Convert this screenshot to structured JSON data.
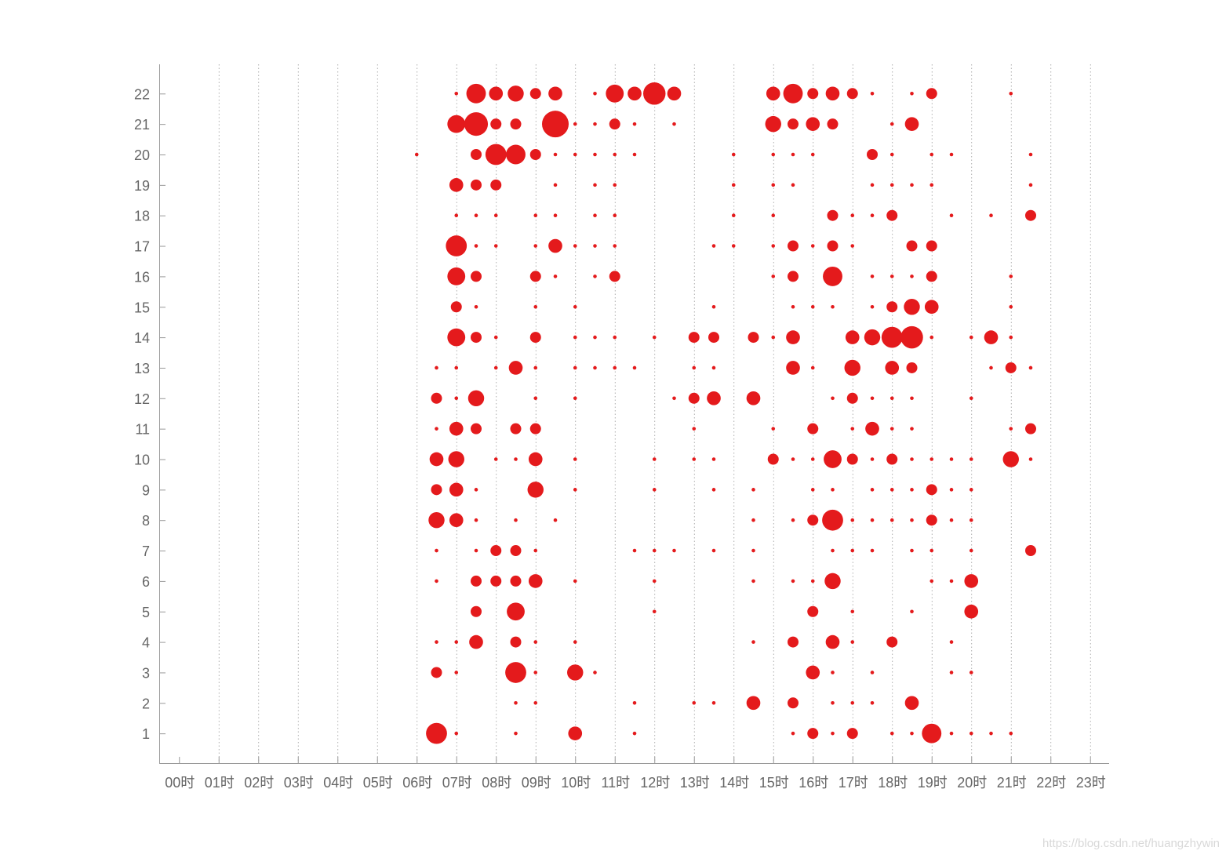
{
  "chart_data": {
    "type": "scatter",
    "title": "",
    "xlabel": "",
    "ylabel": "",
    "x_tick_labels": [
      "00时",
      "01时",
      "02时",
      "03时",
      "04时",
      "05时",
      "06时",
      "07时",
      "08时",
      "09时",
      "10时",
      "11时",
      "12时",
      "13时",
      "14时",
      "15时",
      "16时",
      "17时",
      "18时",
      "19时",
      "20时",
      "21时",
      "22时",
      "23时"
    ],
    "y_ticks": [
      1,
      2,
      3,
      4,
      5,
      6,
      7,
      8,
      9,
      10,
      11,
      12,
      13,
      14,
      15,
      16,
      17,
      18,
      19,
      20,
      21,
      22
    ],
    "xlim": [
      -0.5,
      23.5
    ],
    "ylim": [
      0,
      22.8
    ],
    "grid": "vertical dotted",
    "marker_color": "#e41a1c",
    "size_note": "bubble size is relative count (1 = smallest visible dot)",
    "points": [
      [
        7,
        22,
        1
      ],
      [
        7.5,
        22,
        6
      ],
      [
        8,
        22,
        3
      ],
      [
        8.5,
        22,
        4
      ],
      [
        9,
        22,
        2
      ],
      [
        9.5,
        22,
        3
      ],
      [
        10.5,
        22,
        1
      ],
      [
        11,
        22,
        5
      ],
      [
        11.5,
        22,
        3
      ],
      [
        12,
        22,
        8
      ],
      [
        12.5,
        22,
        3
      ],
      [
        15,
        22,
        3
      ],
      [
        15.5,
        22,
        6
      ],
      [
        16,
        22,
        2
      ],
      [
        16.5,
        22,
        3
      ],
      [
        17,
        22,
        2
      ],
      [
        17.5,
        22,
        1
      ],
      [
        18.5,
        22,
        1
      ],
      [
        19,
        22,
        2
      ],
      [
        21,
        22,
        1
      ],
      [
        7,
        21,
        5
      ],
      [
        7.5,
        21,
        9
      ],
      [
        8,
        21,
        2
      ],
      [
        8.5,
        21,
        2
      ],
      [
        9.5,
        21,
        12
      ],
      [
        10,
        21,
        1
      ],
      [
        10.5,
        21,
        1
      ],
      [
        11,
        21,
        2
      ],
      [
        11.5,
        21,
        1
      ],
      [
        12.5,
        21,
        1
      ],
      [
        15,
        21,
        4
      ],
      [
        15.5,
        21,
        2
      ],
      [
        16,
        21,
        3
      ],
      [
        16.5,
        21,
        2
      ],
      [
        18,
        21,
        1
      ],
      [
        18.5,
        21,
        3
      ],
      [
        6,
        20,
        1
      ],
      [
        7.5,
        20,
        2
      ],
      [
        8,
        20,
        7
      ],
      [
        8.5,
        20,
        6
      ],
      [
        9,
        20,
        2
      ],
      [
        9.5,
        20,
        1
      ],
      [
        10,
        20,
        1
      ],
      [
        10.5,
        20,
        1
      ],
      [
        11,
        20,
        1
      ],
      [
        11.5,
        20,
        1
      ],
      [
        14,
        20,
        1
      ],
      [
        15,
        20,
        1
      ],
      [
        15.5,
        20,
        1
      ],
      [
        16,
        20,
        1
      ],
      [
        17.5,
        20,
        2
      ],
      [
        18,
        20,
        1
      ],
      [
        19,
        20,
        1
      ],
      [
        19.5,
        20,
        1
      ],
      [
        21.5,
        20,
        1
      ],
      [
        7,
        19,
        3
      ],
      [
        7.5,
        19,
        2
      ],
      [
        8,
        19,
        2
      ],
      [
        9.5,
        19,
        1
      ],
      [
        10.5,
        19,
        1
      ],
      [
        11,
        19,
        1
      ],
      [
        14,
        19,
        1
      ],
      [
        15,
        19,
        1
      ],
      [
        15.5,
        19,
        1
      ],
      [
        17.5,
        19,
        1
      ],
      [
        18,
        19,
        1
      ],
      [
        18.5,
        19,
        1
      ],
      [
        19,
        19,
        1
      ],
      [
        21.5,
        19,
        1
      ],
      [
        7,
        18,
        1
      ],
      [
        7.5,
        18,
        1
      ],
      [
        8,
        18,
        1
      ],
      [
        9,
        18,
        1
      ],
      [
        9.5,
        18,
        1
      ],
      [
        10.5,
        18,
        1
      ],
      [
        11,
        18,
        1
      ],
      [
        14,
        18,
        1
      ],
      [
        15,
        18,
        1
      ],
      [
        16.5,
        18,
        2
      ],
      [
        17,
        18,
        1
      ],
      [
        17.5,
        18,
        1
      ],
      [
        18,
        18,
        2
      ],
      [
        19.5,
        18,
        1
      ],
      [
        20.5,
        18,
        1
      ],
      [
        21.5,
        18,
        2
      ],
      [
        7,
        17,
        7
      ],
      [
        7.5,
        17,
        1
      ],
      [
        8,
        17,
        1
      ],
      [
        9,
        17,
        1
      ],
      [
        9.5,
        17,
        3
      ],
      [
        10,
        17,
        1
      ],
      [
        10.5,
        17,
        1
      ],
      [
        11,
        17,
        1
      ],
      [
        13.5,
        17,
        1
      ],
      [
        14,
        17,
        1
      ],
      [
        15,
        17,
        1
      ],
      [
        15.5,
        17,
        2
      ],
      [
        16,
        17,
        1
      ],
      [
        16.5,
        17,
        2
      ],
      [
        17,
        17,
        1
      ],
      [
        18.5,
        17,
        2
      ],
      [
        19,
        17,
        2
      ],
      [
        7,
        16,
        5
      ],
      [
        7.5,
        16,
        2
      ],
      [
        9,
        16,
        2
      ],
      [
        9.5,
        16,
        1
      ],
      [
        10.5,
        16,
        1
      ],
      [
        11,
        16,
        2
      ],
      [
        15,
        16,
        1
      ],
      [
        15.5,
        16,
        2
      ],
      [
        16.5,
        16,
        6
      ],
      [
        17.5,
        16,
        1
      ],
      [
        18,
        16,
        1
      ],
      [
        18.5,
        16,
        1
      ],
      [
        19,
        16,
        2
      ],
      [
        21,
        16,
        1
      ],
      [
        7,
        15,
        2
      ],
      [
        7.5,
        15,
        1
      ],
      [
        9,
        15,
        1
      ],
      [
        10,
        15,
        1
      ],
      [
        13.5,
        15,
        1
      ],
      [
        15.5,
        15,
        1
      ],
      [
        16,
        15,
        1
      ],
      [
        16.5,
        15,
        1
      ],
      [
        17.5,
        15,
        1
      ],
      [
        18,
        15,
        2
      ],
      [
        18.5,
        15,
        4
      ],
      [
        19,
        15,
        3
      ],
      [
        21,
        15,
        1
      ],
      [
        7,
        14,
        5
      ],
      [
        7.5,
        14,
        2
      ],
      [
        8,
        14,
        1
      ],
      [
        9,
        14,
        2
      ],
      [
        10,
        14,
        1
      ],
      [
        10.5,
        14,
        1
      ],
      [
        11,
        14,
        1
      ],
      [
        12,
        14,
        1
      ],
      [
        13,
        14,
        2
      ],
      [
        13.5,
        14,
        2
      ],
      [
        14.5,
        14,
        2
      ],
      [
        15,
        14,
        1
      ],
      [
        15.5,
        14,
        3
      ],
      [
        17,
        14,
        3
      ],
      [
        17.5,
        14,
        4
      ],
      [
        18,
        14,
        7
      ],
      [
        18.5,
        14,
        8
      ],
      [
        19,
        14,
        1
      ],
      [
        20,
        14,
        1
      ],
      [
        20.5,
        14,
        3
      ],
      [
        21,
        14,
        1
      ],
      [
        6.5,
        13,
        1
      ],
      [
        7,
        13,
        1
      ],
      [
        8,
        13,
        1
      ],
      [
        8.5,
        13,
        3
      ],
      [
        9,
        13,
        1
      ],
      [
        10,
        13,
        1
      ],
      [
        10.5,
        13,
        1
      ],
      [
        11,
        13,
        1
      ],
      [
        11.5,
        13,
        1
      ],
      [
        13,
        13,
        1
      ],
      [
        13.5,
        13,
        1
      ],
      [
        15.5,
        13,
        3
      ],
      [
        16,
        13,
        1
      ],
      [
        17,
        13,
        4
      ],
      [
        18,
        13,
        3
      ],
      [
        18.5,
        13,
        2
      ],
      [
        20.5,
        13,
        1
      ],
      [
        21,
        13,
        2
      ],
      [
        21.5,
        13,
        1
      ],
      [
        6.5,
        12,
        2
      ],
      [
        7,
        12,
        1
      ],
      [
        7.5,
        12,
        4
      ],
      [
        9,
        12,
        1
      ],
      [
        10,
        12,
        1
      ],
      [
        12.5,
        12,
        1
      ],
      [
        13,
        12,
        2
      ],
      [
        13.5,
        12,
        3
      ],
      [
        14.5,
        12,
        3
      ],
      [
        16.5,
        12,
        1
      ],
      [
        17,
        12,
        2
      ],
      [
        17.5,
        12,
        1
      ],
      [
        18,
        12,
        1
      ],
      [
        18.5,
        12,
        1
      ],
      [
        20,
        12,
        1
      ],
      [
        6.5,
        11,
        1
      ],
      [
        7,
        11,
        3
      ],
      [
        7.5,
        11,
        2
      ],
      [
        8.5,
        11,
        2
      ],
      [
        9,
        11,
        2
      ],
      [
        13,
        11,
        1
      ],
      [
        15,
        11,
        1
      ],
      [
        16,
        11,
        2
      ],
      [
        17,
        11,
        1
      ],
      [
        17.5,
        11,
        3
      ],
      [
        18,
        11,
        1
      ],
      [
        18.5,
        11,
        1
      ],
      [
        21,
        11,
        1
      ],
      [
        21.5,
        11,
        2
      ],
      [
        6.5,
        10,
        3
      ],
      [
        7,
        10,
        4
      ],
      [
        8,
        10,
        1
      ],
      [
        8.5,
        10,
        1
      ],
      [
        9,
        10,
        3
      ],
      [
        10,
        10,
        1
      ],
      [
        12,
        10,
        1
      ],
      [
        13,
        10,
        1
      ],
      [
        13.5,
        10,
        1
      ],
      [
        15,
        10,
        2
      ],
      [
        15.5,
        10,
        1
      ],
      [
        16,
        10,
        1
      ],
      [
        16.5,
        10,
        5
      ],
      [
        17,
        10,
        2
      ],
      [
        17.5,
        10,
        1
      ],
      [
        18,
        10,
        2
      ],
      [
        18.5,
        10,
        1
      ],
      [
        19,
        10,
        1
      ],
      [
        19.5,
        10,
        1
      ],
      [
        20,
        10,
        1
      ],
      [
        21,
        10,
        4
      ],
      [
        21.5,
        10,
        1
      ],
      [
        6.5,
        9,
        2
      ],
      [
        7,
        9,
        3
      ],
      [
        7.5,
        9,
        1
      ],
      [
        9,
        9,
        4
      ],
      [
        10,
        9,
        1
      ],
      [
        12,
        9,
        1
      ],
      [
        13.5,
        9,
        1
      ],
      [
        14.5,
        9,
        1
      ],
      [
        16,
        9,
        1
      ],
      [
        16.5,
        9,
        1
      ],
      [
        17.5,
        9,
        1
      ],
      [
        18,
        9,
        1
      ],
      [
        18.5,
        9,
        1
      ],
      [
        19,
        9,
        2
      ],
      [
        19.5,
        9,
        1
      ],
      [
        20,
        9,
        1
      ],
      [
        6.5,
        8,
        4
      ],
      [
        7,
        8,
        3
      ],
      [
        7.5,
        8,
        1
      ],
      [
        8.5,
        8,
        1
      ],
      [
        9.5,
        8,
        1
      ],
      [
        14.5,
        8,
        1
      ],
      [
        15.5,
        8,
        1
      ],
      [
        16,
        8,
        2
      ],
      [
        16.5,
        8,
        7
      ],
      [
        17,
        8,
        1
      ],
      [
        17.5,
        8,
        1
      ],
      [
        18,
        8,
        1
      ],
      [
        18.5,
        8,
        1
      ],
      [
        19,
        8,
        2
      ],
      [
        19.5,
        8,
        1
      ],
      [
        20,
        8,
        1
      ],
      [
        6.5,
        7,
        1
      ],
      [
        7.5,
        7,
        1
      ],
      [
        8,
        7,
        2
      ],
      [
        8.5,
        7,
        2
      ],
      [
        9,
        7,
        1
      ],
      [
        11.5,
        7,
        1
      ],
      [
        12,
        7,
        1
      ],
      [
        12.5,
        7,
        1
      ],
      [
        13.5,
        7,
        1
      ],
      [
        14.5,
        7,
        1
      ],
      [
        16.5,
        7,
        1
      ],
      [
        17,
        7,
        1
      ],
      [
        17.5,
        7,
        1
      ],
      [
        18.5,
        7,
        1
      ],
      [
        19,
        7,
        1
      ],
      [
        20,
        7,
        1
      ],
      [
        21.5,
        7,
        2
      ],
      [
        6.5,
        6,
        1
      ],
      [
        7.5,
        6,
        2
      ],
      [
        8,
        6,
        2
      ],
      [
        8.5,
        6,
        2
      ],
      [
        9,
        6,
        3
      ],
      [
        10,
        6,
        1
      ],
      [
        12,
        6,
        1
      ],
      [
        14.5,
        6,
        1
      ],
      [
        15.5,
        6,
        1
      ],
      [
        16,
        6,
        1
      ],
      [
        16.5,
        6,
        4
      ],
      [
        19,
        6,
        1
      ],
      [
        19.5,
        6,
        1
      ],
      [
        20,
        6,
        3
      ],
      [
        7.5,
        5,
        2
      ],
      [
        8.5,
        5,
        5
      ],
      [
        12,
        5,
        1
      ],
      [
        16,
        5,
        2
      ],
      [
        17,
        5,
        1
      ],
      [
        18.5,
        5,
        1
      ],
      [
        20,
        5,
        3
      ],
      [
        6.5,
        4,
        1
      ],
      [
        7,
        4,
        1
      ],
      [
        7.5,
        4,
        3
      ],
      [
        8.5,
        4,
        2
      ],
      [
        9,
        4,
        1
      ],
      [
        10,
        4,
        1
      ],
      [
        14.5,
        4,
        1
      ],
      [
        15.5,
        4,
        2
      ],
      [
        16.5,
        4,
        3
      ],
      [
        17,
        4,
        1
      ],
      [
        18,
        4,
        2
      ],
      [
        19.5,
        4,
        1
      ],
      [
        6.5,
        3,
        2
      ],
      [
        7,
        3,
        1
      ],
      [
        8.5,
        3,
        7
      ],
      [
        9,
        3,
        1
      ],
      [
        10,
        3,
        4
      ],
      [
        10.5,
        3,
        1
      ],
      [
        16,
        3,
        3
      ],
      [
        16.5,
        3,
        1
      ],
      [
        17.5,
        3,
        1
      ],
      [
        19.5,
        3,
        1
      ],
      [
        20,
        3,
        1
      ],
      [
        8.5,
        2,
        1
      ],
      [
        9,
        2,
        1
      ],
      [
        11.5,
        2,
        1
      ],
      [
        13,
        2,
        1
      ],
      [
        13.5,
        2,
        1
      ],
      [
        14.5,
        2,
        3
      ],
      [
        15.5,
        2,
        2
      ],
      [
        16.5,
        2,
        1
      ],
      [
        17,
        2,
        1
      ],
      [
        17.5,
        2,
        1
      ],
      [
        18.5,
        2,
        3
      ],
      [
        6.5,
        1,
        7
      ],
      [
        7,
        1,
        1
      ],
      [
        8.5,
        1,
        1
      ],
      [
        10,
        1,
        3
      ],
      [
        11.5,
        1,
        1
      ],
      [
        15.5,
        1,
        1
      ],
      [
        16,
        1,
        2
      ],
      [
        16.5,
        1,
        1
      ],
      [
        17,
        1,
        2
      ],
      [
        18,
        1,
        1
      ],
      [
        18.5,
        1,
        1
      ],
      [
        19,
        1,
        6
      ],
      [
        19.5,
        1,
        1
      ],
      [
        20,
        1,
        1
      ],
      [
        20.5,
        1,
        1
      ],
      [
        21,
        1,
        1
      ]
    ]
  },
  "watermark": "https://blog.csdn.net/huangzhywin"
}
